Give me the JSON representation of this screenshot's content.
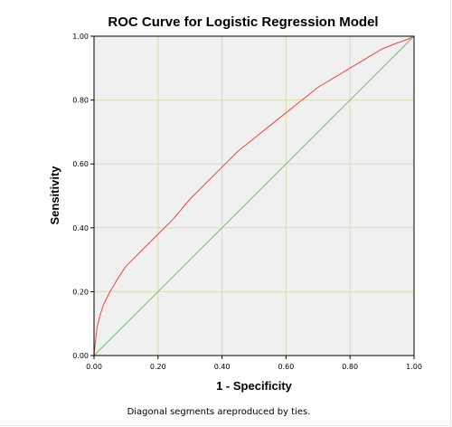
{
  "chart_data": {
    "type": "line",
    "title": "ROC Curve for Logistic Regression Model",
    "xlabel": "1 - Specificity",
    "ylabel": "Sensitivity",
    "xlim": [
      0,
      1
    ],
    "ylim": [
      0,
      1
    ],
    "x_ticks": [
      "0.00",
      "0.20",
      "0.40",
      "0.60",
      "0.80",
      "1.00"
    ],
    "y_ticks": [
      "0.00",
      "0.20",
      "0.40",
      "0.60",
      "0.80",
      "1.00"
    ],
    "grid": true,
    "legend": "none",
    "footnote": "Diagonal segments areproduced by ties.",
    "colors": {
      "plot_background": "#f0f0f0",
      "grid": "#dadcad",
      "roc_curve": "#e8463f",
      "reference_line": "#6dbf6b"
    },
    "series": [
      {
        "role": "roc-curve",
        "x": [
          0.0,
          0.005,
          0.01,
          0.02,
          0.03,
          0.05,
          0.08,
          0.1,
          0.15,
          0.2,
          0.25,
          0.3,
          0.35,
          0.4,
          0.45,
          0.5,
          0.55,
          0.6,
          0.65,
          0.7,
          0.75,
          0.8,
          0.85,
          0.9,
          0.95,
          0.98,
          1.0
        ],
        "y": [
          0.0,
          0.05,
          0.09,
          0.13,
          0.16,
          0.2,
          0.25,
          0.28,
          0.33,
          0.38,
          0.43,
          0.49,
          0.54,
          0.59,
          0.64,
          0.68,
          0.72,
          0.76,
          0.8,
          0.84,
          0.87,
          0.9,
          0.93,
          0.96,
          0.98,
          0.99,
          1.0
        ]
      },
      {
        "role": "reference-diagonal",
        "x": [
          0.0,
          1.0
        ],
        "y": [
          0.0,
          1.0
        ]
      }
    ]
  }
}
